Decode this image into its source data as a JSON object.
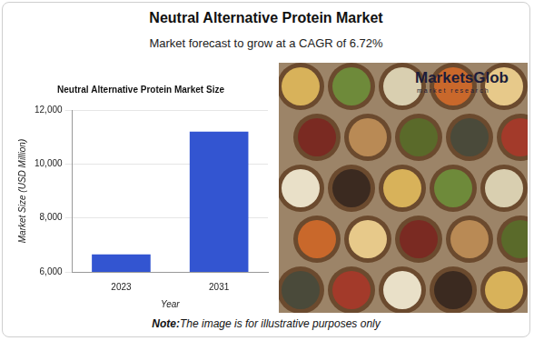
{
  "header": {
    "title": "Neutral Alternative Protein Market",
    "subtitle": "Market forecast to grow at a CAGR of 6.72%"
  },
  "chart_data": {
    "type": "bar",
    "title": "Neutral Alternative Protein Market Size",
    "x_label": "Year",
    "y_label": "Market Size (USD Million)",
    "categories": [
      "2023",
      "2031"
    ],
    "values": [
      6650,
      11200
    ],
    "color": "#3355d1",
    "ylim": [
      6000,
      12000
    ],
    "yticks": [
      {
        "value": 6000,
        "label": "6,000"
      },
      {
        "value": 8000,
        "label": "8,000"
      },
      {
        "value": 10000,
        "label": "10,000"
      },
      {
        "value": 12000,
        "label": "12,000"
      }
    ],
    "grid": true
  },
  "image": {
    "logo": "MarketsGlob",
    "logo_tagline": "market research"
  },
  "note": {
    "label": "Note:",
    "text": "The image is for illustrative purposes only"
  }
}
